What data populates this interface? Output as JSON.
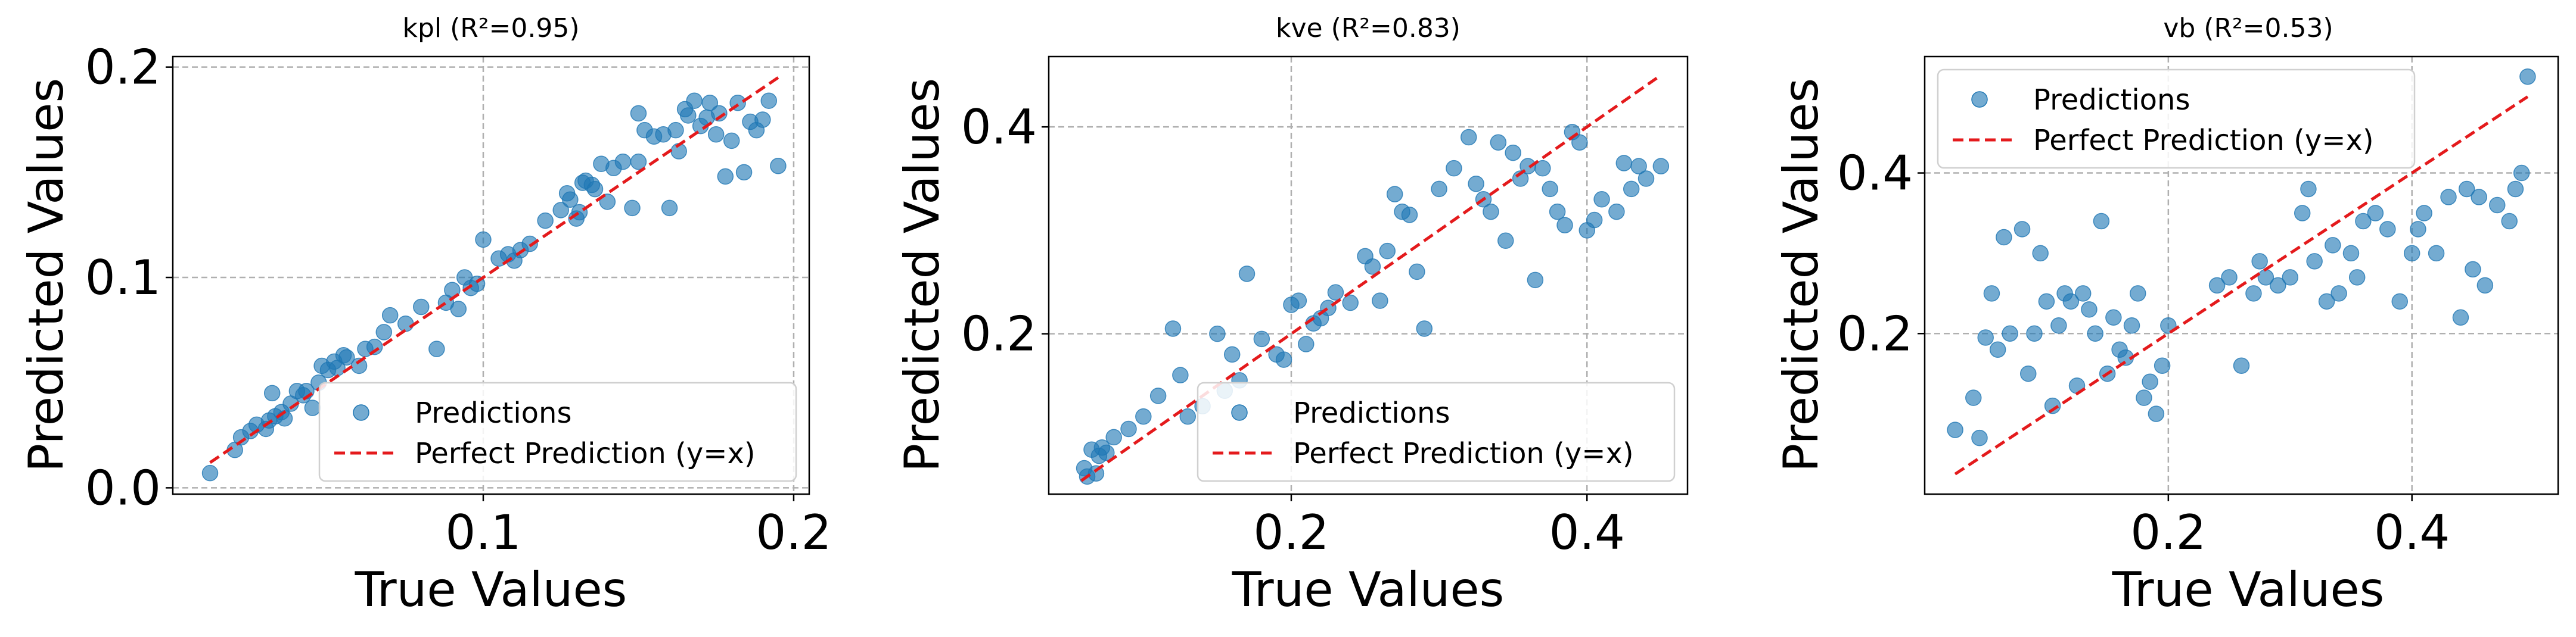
{
  "colors": {
    "points": "#1f77b4",
    "perfect_line": "#e41a1c",
    "grid": "#b0b0b0"
  },
  "chart_data": [
    {
      "type": "scatter",
      "title": "kpl (R²=0.95)",
      "xlabel": "True Values",
      "ylabel": "Predicted Values",
      "xlim": [
        0.0,
        0.205
      ],
      "ylim": [
        -0.003,
        0.205
      ],
      "xticks": [
        0.1,
        0.2
      ],
      "xtick_labels": [
        "0.1",
        "0.2"
      ],
      "yticks": [
        0.0,
        0.1,
        0.2
      ],
      "ytick_labels": [
        "0.0",
        "0.1",
        "0.2"
      ],
      "grid": true,
      "legend_position": "lower-right",
      "series": [
        {
          "name": "Predictions",
          "kind": "points",
          "x": [
            0.012,
            0.02,
            0.022,
            0.025,
            0.027,
            0.03,
            0.031,
            0.032,
            0.033,
            0.035,
            0.036,
            0.038,
            0.04,
            0.042,
            0.043,
            0.045,
            0.047,
            0.048,
            0.05,
            0.052,
            0.053,
            0.055,
            0.056,
            0.06,
            0.062,
            0.065,
            0.068,
            0.07,
            0.075,
            0.08,
            0.085,
            0.088,
            0.09,
            0.092,
            0.094,
            0.096,
            0.098,
            0.1,
            0.105,
            0.108,
            0.11,
            0.112,
            0.115,
            0.12,
            0.125,
            0.127,
            0.128,
            0.13,
            0.131,
            0.132,
            0.133,
            0.135,
            0.136,
            0.138,
            0.14,
            0.142,
            0.145,
            0.148,
            0.15,
            0.15,
            0.152,
            0.155,
            0.158,
            0.16,
            0.162,
            0.163,
            0.165,
            0.166,
            0.168,
            0.17,
            0.172,
            0.173,
            0.175,
            0.176,
            0.178,
            0.18,
            0.182,
            0.184,
            0.186,
            0.188,
            0.19,
            0.192,
            0.195
          ],
          "y": [
            0.007,
            0.018,
            0.024,
            0.027,
            0.03,
            0.028,
            0.032,
            0.045,
            0.034,
            0.036,
            0.033,
            0.04,
            0.046,
            0.044,
            0.046,
            0.038,
            0.05,
            0.058,
            0.056,
            0.06,
            0.057,
            0.063,
            0.062,
            0.058,
            0.066,
            0.067,
            0.074,
            0.082,
            0.078,
            0.086,
            0.066,
            0.088,
            0.094,
            0.085,
            0.1,
            0.095,
            0.097,
            0.118,
            0.109,
            0.111,
            0.108,
            0.113,
            0.116,
            0.127,
            0.132,
            0.14,
            0.137,
            0.128,
            0.131,
            0.145,
            0.146,
            0.144,
            0.142,
            0.154,
            0.136,
            0.152,
            0.155,
            0.133,
            0.155,
            0.178,
            0.17,
            0.167,
            0.168,
            0.133,
            0.17,
            0.16,
            0.18,
            0.177,
            0.184,
            0.172,
            0.176,
            0.183,
            0.168,
            0.178,
            0.148,
            0.165,
            0.183,
            0.15,
            0.174,
            0.17,
            0.175,
            0.184,
            0.153
          ]
        },
        {
          "name": "Perfect Prediction (y=x)",
          "kind": "line",
          "x": [
            0.012,
            0.195
          ],
          "y": [
            0.012,
            0.195
          ]
        }
      ]
    },
    {
      "type": "scatter",
      "title": "kve (R²=0.83)",
      "xlabel": "True Values",
      "ylabel": "Predicted Values",
      "xlim": [
        0.036,
        0.468
      ],
      "ylim": [
        0.045,
        0.468
      ],
      "xticks": [
        0.2,
        0.4
      ],
      "xtick_labels": [
        "0.2",
        "0.4"
      ],
      "yticks": [
        0.2,
        0.4
      ],
      "ytick_labels": [
        "0.2",
        "0.4"
      ],
      "grid": true,
      "legend_position": "lower-right",
      "series": [
        {
          "name": "Predictions",
          "kind": "points",
          "x": [
            0.06,
            0.062,
            0.065,
            0.068,
            0.07,
            0.072,
            0.075,
            0.08,
            0.09,
            0.1,
            0.11,
            0.12,
            0.125,
            0.13,
            0.14,
            0.15,
            0.155,
            0.16,
            0.165,
            0.17,
            0.18,
            0.19,
            0.195,
            0.2,
            0.205,
            0.21,
            0.215,
            0.22,
            0.225,
            0.23,
            0.24,
            0.25,
            0.255,
            0.26,
            0.265,
            0.27,
            0.275,
            0.28,
            0.285,
            0.29,
            0.3,
            0.31,
            0.32,
            0.325,
            0.33,
            0.335,
            0.34,
            0.345,
            0.35,
            0.355,
            0.36,
            0.365,
            0.37,
            0.375,
            0.38,
            0.385,
            0.39,
            0.395,
            0.4,
            0.405,
            0.41,
            0.42,
            0.425,
            0.43,
            0.435,
            0.44,
            0.45
          ],
          "y": [
            0.07,
            0.062,
            0.088,
            0.065,
            0.082,
            0.09,
            0.085,
            0.1,
            0.108,
            0.12,
            0.14,
            0.205,
            0.16,
            0.12,
            0.13,
            0.2,
            0.145,
            0.18,
            0.155,
            0.258,
            0.195,
            0.18,
            0.175,
            0.228,
            0.232,
            0.19,
            0.21,
            0.215,
            0.225,
            0.24,
            0.23,
            0.275,
            0.265,
            0.232,
            0.28,
            0.335,
            0.318,
            0.315,
            0.26,
            0.205,
            0.34,
            0.36,
            0.39,
            0.345,
            0.33,
            0.318,
            0.385,
            0.29,
            0.375,
            0.35,
            0.362,
            0.252,
            0.36,
            0.34,
            0.318,
            0.305,
            0.395,
            0.385,
            0.3,
            0.31,
            0.33,
            0.318,
            0.365,
            0.34,
            0.362,
            0.35,
            0.362
          ]
        },
        {
          "name": "Perfect Prediction (y=x)",
          "kind": "line",
          "x": [
            0.058,
            0.45
          ],
          "y": [
            0.058,
            0.45
          ]
        }
      ]
    },
    {
      "type": "scatter",
      "title": "vb (R²=0.53)",
      "xlabel": "True Values",
      "ylabel": "Predicted Values",
      "xlim": [
        0.0,
        0.52
      ],
      "ylim": [
        0.0,
        0.545
      ],
      "xticks": [
        0.2,
        0.4
      ],
      "xtick_labels": [
        "0.2",
        "0.4"
      ],
      "yticks": [
        0.2,
        0.4
      ],
      "ytick_labels": [
        "0.2",
        "0.4"
      ],
      "grid": true,
      "legend_position": "top-left",
      "series": [
        {
          "name": "Predictions",
          "kind": "points",
          "x": [
            0.025,
            0.04,
            0.045,
            0.05,
            0.055,
            0.06,
            0.065,
            0.07,
            0.08,
            0.085,
            0.09,
            0.095,
            0.1,
            0.105,
            0.11,
            0.115,
            0.12,
            0.125,
            0.13,
            0.135,
            0.14,
            0.145,
            0.15,
            0.155,
            0.16,
            0.165,
            0.17,
            0.175,
            0.18,
            0.185,
            0.19,
            0.195,
            0.2,
            0.24,
            0.25,
            0.26,
            0.27,
            0.275,
            0.28,
            0.29,
            0.3,
            0.31,
            0.315,
            0.32,
            0.33,
            0.335,
            0.34,
            0.35,
            0.355,
            0.36,
            0.37,
            0.38,
            0.39,
            0.4,
            0.405,
            0.41,
            0.42,
            0.43,
            0.44,
            0.445,
            0.45,
            0.455,
            0.46,
            0.47,
            0.48,
            0.485,
            0.49,
            0.495
          ],
          "y": [
            0.08,
            0.12,
            0.07,
            0.195,
            0.25,
            0.18,
            0.32,
            0.2,
            0.33,
            0.15,
            0.2,
            0.3,
            0.24,
            0.11,
            0.21,
            0.25,
            0.24,
            0.135,
            0.25,
            0.23,
            0.2,
            0.34,
            0.15,
            0.22,
            0.18,
            0.17,
            0.21,
            0.25,
            0.12,
            0.14,
            0.1,
            0.16,
            0.21,
            0.26,
            0.27,
            0.16,
            0.25,
            0.29,
            0.27,
            0.26,
            0.27,
            0.35,
            0.38,
            0.29,
            0.24,
            0.31,
            0.25,
            0.3,
            0.27,
            0.34,
            0.35,
            0.33,
            0.24,
            0.3,
            0.33,
            0.35,
            0.3,
            0.37,
            0.22,
            0.38,
            0.28,
            0.37,
            0.26,
            0.36,
            0.34,
            0.38,
            0.4,
            0.52
          ]
        },
        {
          "name": "Perfect Prediction (y=x)",
          "kind": "line",
          "x": [
            0.025,
            0.495
          ],
          "y": [
            0.025,
            0.495
          ]
        }
      ]
    }
  ]
}
